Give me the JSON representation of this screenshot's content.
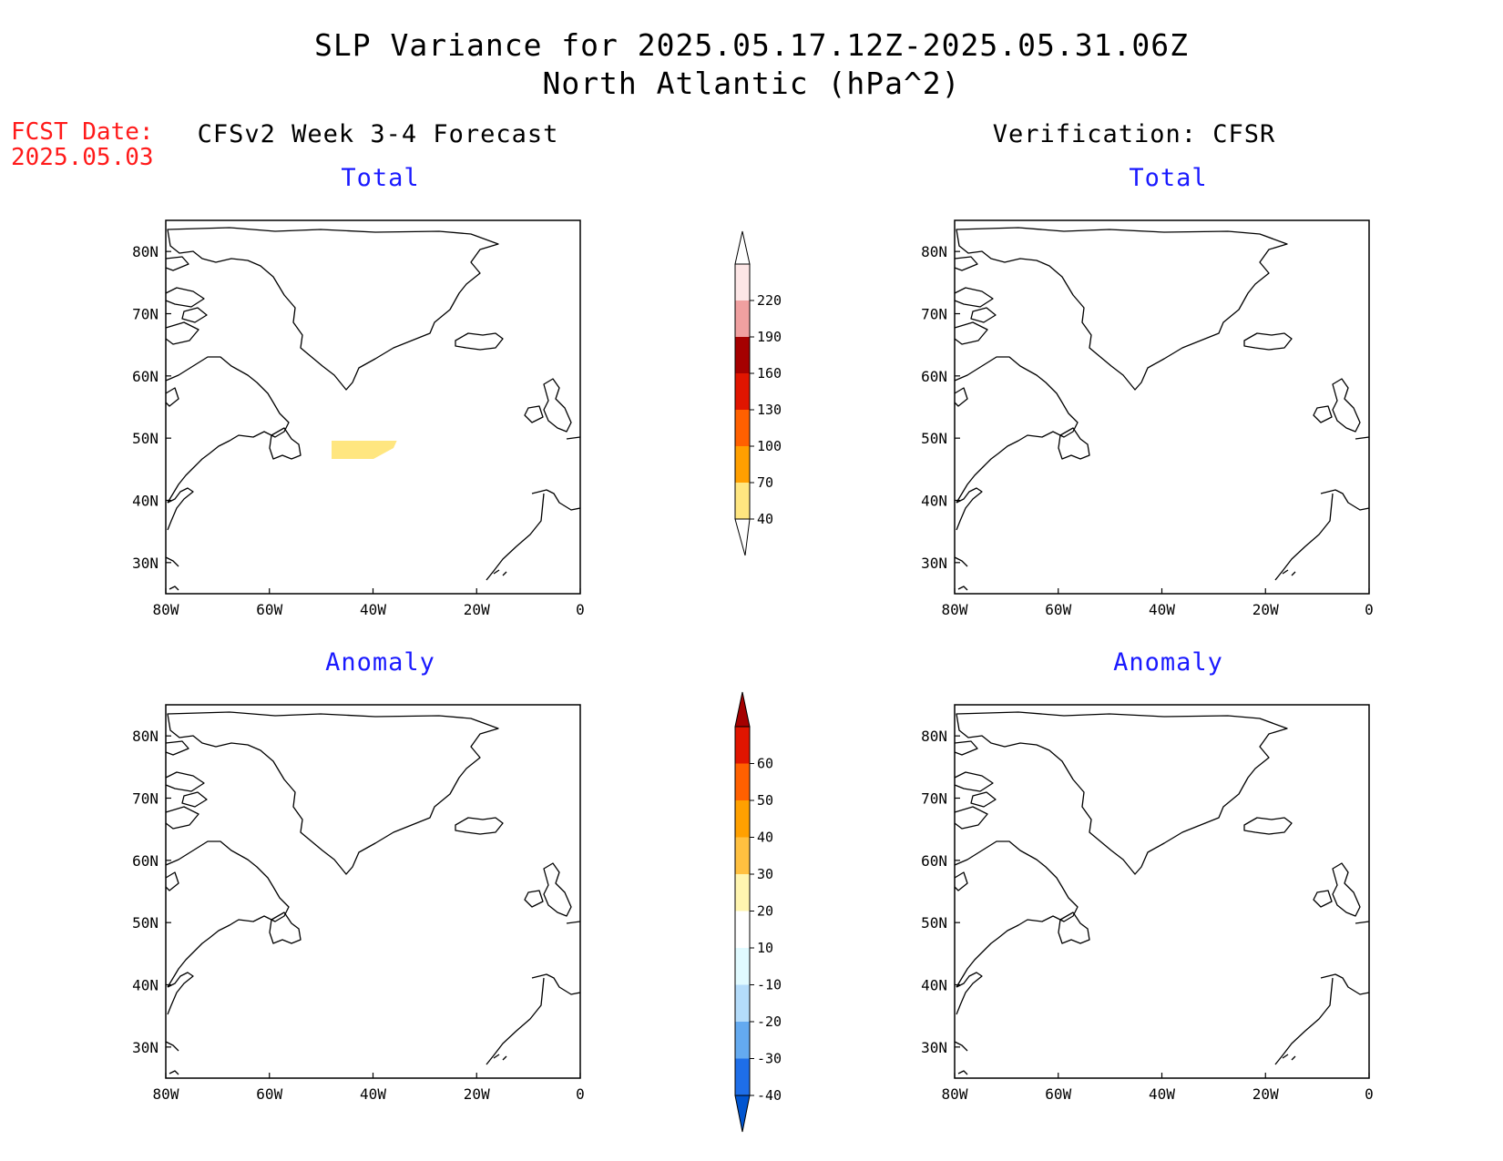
{
  "header": {
    "title_line1": "SLP Variance for 2025.05.17.12Z-2025.05.31.06Z",
    "title_line2": "North Atlantic (hPa^2)"
  },
  "fcst_date": {
    "label": "FCST Date:",
    "value": "2025.05.03"
  },
  "columns": {
    "left": "CFSv2 Week 3-4 Forecast",
    "right": "Verification: CFSR"
  },
  "panel_titles": {
    "top_left": "Total",
    "top_right": "Total",
    "bottom_left": "Anomaly",
    "bottom_right": "Anomaly"
  },
  "map": {
    "lon_range": [
      -80,
      0
    ],
    "lat_range": [
      25,
      85
    ],
    "lon_ticks": [
      "80W",
      "60W",
      "40W",
      "20W",
      "0"
    ],
    "lat_ticks": [
      "30N",
      "40N",
      "50N",
      "60N",
      "70N",
      "80N"
    ]
  },
  "colorbars": {
    "total": {
      "labels": [
        "40",
        "70",
        "100",
        "130",
        "160",
        "190",
        "220"
      ],
      "colors": [
        "#ffe680",
        "#ff9f00",
        "#ff6000",
        "#e01500",
        "#a50000",
        "#f0a0a0",
        "#fde6e6"
      ]
    },
    "anomaly": {
      "labels": [
        "-40",
        "-30",
        "-20",
        "-10",
        "10",
        "20",
        "30",
        "40",
        "50",
        "60"
      ],
      "colors": [
        "#0055d0",
        "#1e6ee8",
        "#64aaf0",
        "#b4dcfa",
        "#e0faff",
        "#ffffff",
        "#fff5b0",
        "#ffc040",
        "#ffa000",
        "#ff6000",
        "#e01500",
        "#a50000"
      ]
    }
  },
  "colors": {
    "total_40": "#ffe680",
    "total_70": "#ff9f00",
    "anom_pos10": "#fff5b0",
    "anom_pos20": "#ffc040",
    "anom_pos30": "#ffa000",
    "anom_neg10": "#e0faff",
    "anom_neg20": "#b4dcfa",
    "anom_neg30": "#64aaf0",
    "anom_neg40": "#1e6ee8"
  }
}
